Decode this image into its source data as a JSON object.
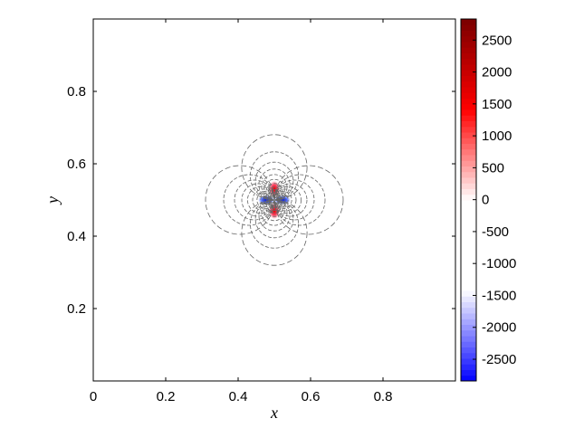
{
  "chart_data": {
    "type": "contour",
    "x_label": "x",
    "y_label": "y",
    "xlim": [
      0,
      1
    ],
    "ylim": [
      0,
      1
    ],
    "xticks": [
      0,
      0.2,
      0.4,
      0.6,
      0.8
    ],
    "yticks": [
      0.2,
      0.4,
      0.6,
      0.8
    ],
    "colorbar": {
      "clim": [
        -2840,
        2830
      ],
      "ticks": [
        -2500,
        -2000,
        -1500,
        -1000,
        -500,
        0,
        500,
        1000,
        1500,
        2000,
        2500
      ],
      "colormap": [
        "#0000ff",
        "#ffffff",
        "#ffffff",
        "#ff0000",
        "#7a0000"
      ]
    }
  }
}
